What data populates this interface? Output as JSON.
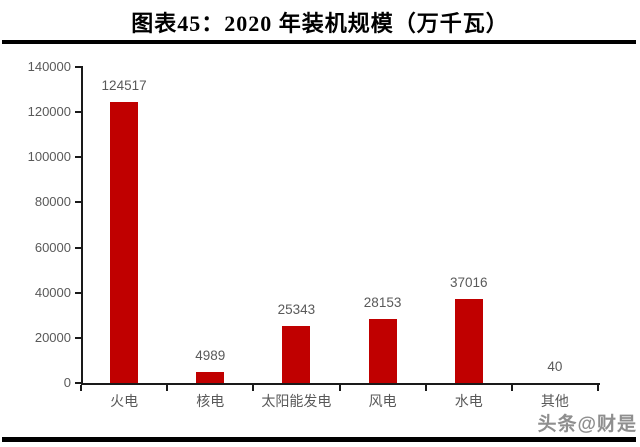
{
  "header": {
    "title": "图表45：2020 年装机规模（万千瓦）"
  },
  "watermark": {
    "text": "头条@财是"
  },
  "chart_data": {
    "type": "bar",
    "title": "图表45：2020 年装机规模（万千瓦）",
    "categories": [
      "火电",
      "核电",
      "太阳能发电",
      "风电",
      "水电",
      "其他"
    ],
    "values": [
      124517,
      4989,
      25343,
      28153,
      37016,
      40
    ],
    "data_labels": [
      "124517",
      "4989",
      "25343",
      "28153",
      "37016",
      "40"
    ],
    "xlabel": "",
    "ylabel": "",
    "ylim": [
      0,
      140000
    ],
    "yticks": [
      0,
      20000,
      40000,
      60000,
      80000,
      100000,
      120000,
      140000
    ],
    "ytick_labels": [
      "0",
      "20000",
      "40000",
      "60000",
      "80000",
      "100000",
      "120000",
      "140000"
    ],
    "grid": false,
    "legend": false,
    "colors": {
      "bar": "#c00000",
      "axis": "#1a1a1a",
      "tick_label": "#595959",
      "data_label": "#595959",
      "category_label": "#595959",
      "rule": "#000000",
      "watermark": "#8f8f8f"
    }
  }
}
